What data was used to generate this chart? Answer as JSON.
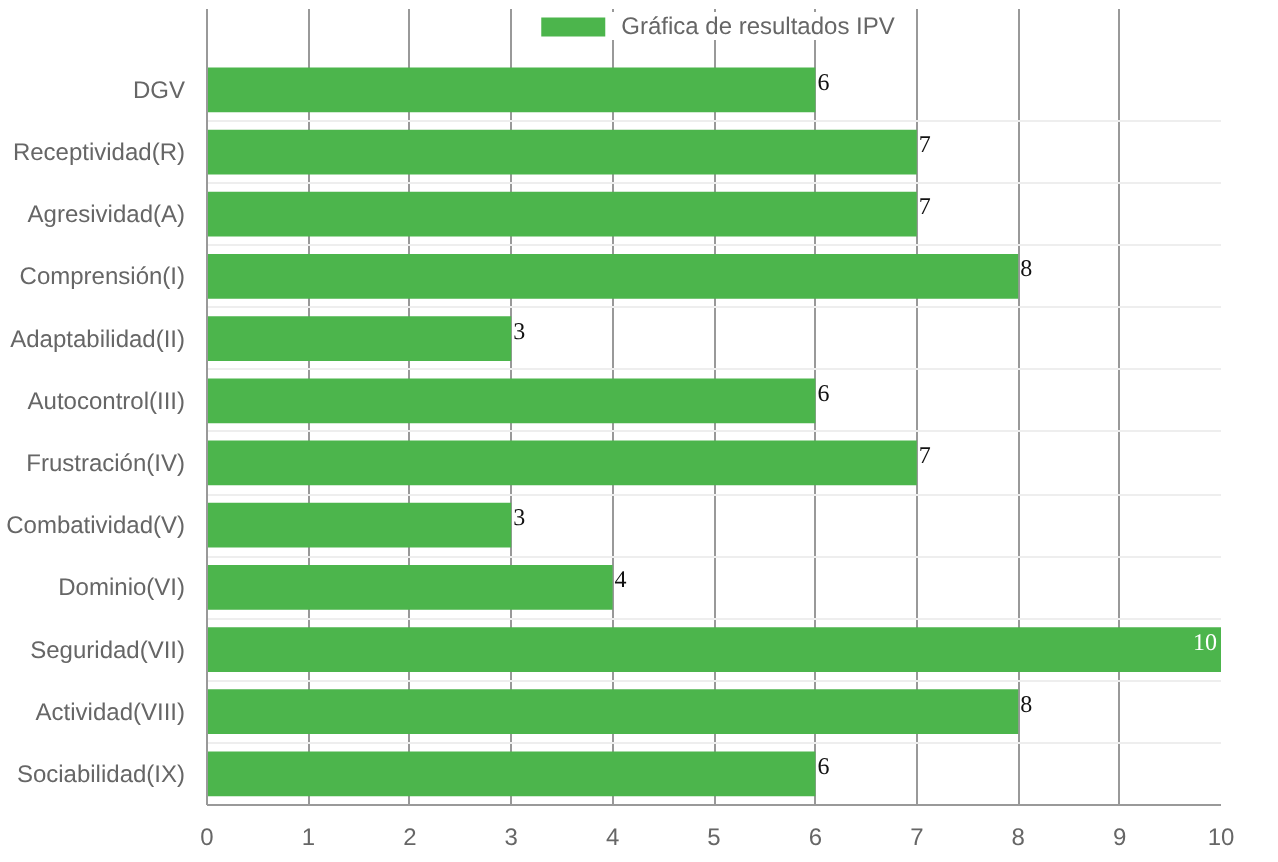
{
  "chart_data": {
    "type": "bar",
    "orientation": "horizontal",
    "categories": [
      "DGV",
      "Receptividad(R)",
      "Agresividad(A)",
      "Comprensión(I)",
      "Adaptabilidad(II)",
      "Autocontrol(III)",
      "Frustración(IV)",
      "Combatividad(V)",
      "Dominio(VI)",
      "Seguridad(VII)",
      "Actividad(VIII)",
      "Sociabilidad(IX)"
    ],
    "series": [
      {
        "name": "Gráfica de resultados IPV",
        "color": "#4cb54c",
        "values": [
          6,
          7,
          7,
          8,
          3,
          6,
          7,
          3,
          4,
          10,
          8,
          6
        ]
      }
    ],
    "xlim": [
      0,
      10
    ],
    "xticks": [
      0,
      1,
      2,
      3,
      4,
      5,
      6,
      7,
      8,
      9,
      10
    ],
    "grid": true,
    "legend": "top",
    "data_labels": true
  }
}
